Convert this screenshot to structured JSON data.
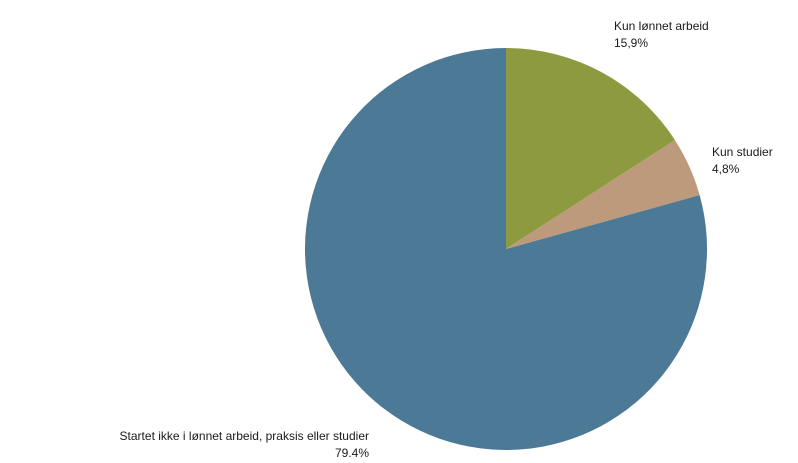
{
  "chart_data": {
    "type": "pie",
    "start_angle_deg": 0,
    "direction": "clockwise",
    "slices": [
      {
        "label": "Kun lønnet arbeid",
        "value_text": "15,9%",
        "value": 15.9,
        "color": "#8d9a3f"
      },
      {
        "label": "Kun studier",
        "value_text": "4,8%",
        "value": 4.8,
        "color": "#bd9a7b"
      },
      {
        "label": "Startet ikke i lønnet arbeid, praksis eller studier",
        "value_text": "79.4%",
        "value": 79.4,
        "color": "#4b7996"
      }
    ]
  }
}
